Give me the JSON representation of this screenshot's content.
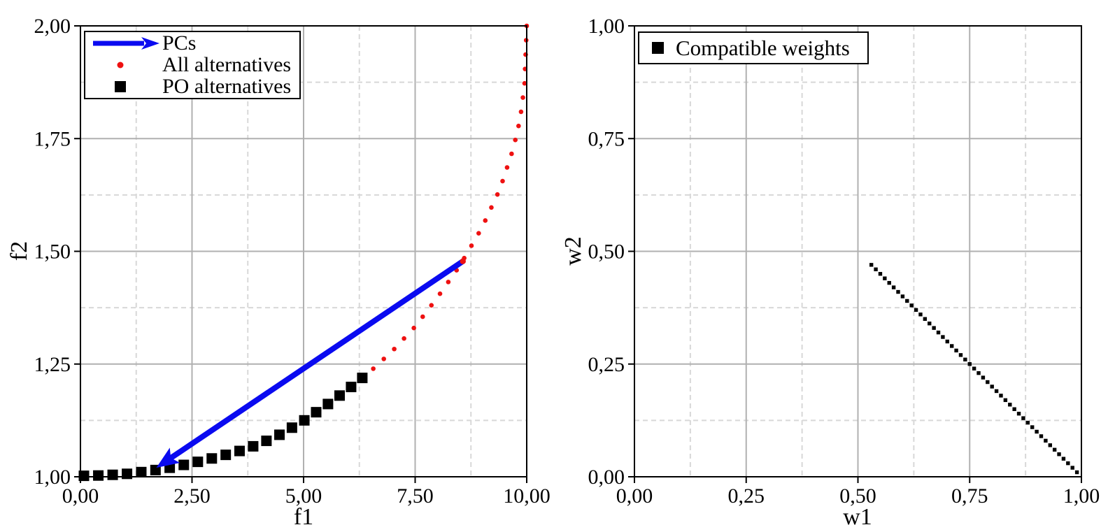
{
  "figure": {
    "background": "#ffffff",
    "axis_color": "#000000",
    "grid_major_color": "#b0b0b0",
    "grid_minor_color": "#d8d8d8",
    "pcs_arrow_color": "#0a0af0",
    "all_alternatives_color": "#ee1111",
    "po_alternatives_color": "#000000",
    "compatible_weights_color": "#000000"
  },
  "left_plot": {
    "xlabel": "f1",
    "ylabel": "f2",
    "legend": {
      "items": [
        {
          "label": "PCs",
          "marker": "arrow",
          "color": "#0a0af0"
        },
        {
          "label": "All alternatives",
          "marker": "dot",
          "color": "#ee1111"
        },
        {
          "label": "PO alternatives",
          "marker": "square",
          "color": "#000000"
        }
      ]
    }
  },
  "right_plot": {
    "xlabel": "w1",
    "ylabel": "w2",
    "legend": {
      "items": [
        {
          "label": "Compatible weights",
          "marker": "square",
          "color": "#000000"
        }
      ]
    }
  },
  "chart_data": [
    {
      "type": "scatter",
      "title": "",
      "xlabel": "f1",
      "ylabel": "f2",
      "xlim": [
        0,
        10
      ],
      "ylim": [
        1,
        2
      ],
      "x_ticks": {
        "values": [
          0,
          2.5,
          5,
          7.5,
          10
        ],
        "labels": [
          "0,00",
          "2,50",
          "5,00",
          "7,50",
          "10,00"
        ]
      },
      "y_ticks": {
        "values": [
          1,
          1.25,
          1.5,
          1.75,
          2
        ],
        "labels": [
          "1,00",
          "1,25",
          "1,50",
          "1,75",
          "2,00"
        ]
      },
      "grid": {
        "major": "solid",
        "minor": "dashed-at-midpoints"
      },
      "legend_position": "upper left",
      "series": [
        {
          "name": "All alternatives",
          "marker": "dot",
          "color": "#ee1111",
          "marker_count": 50,
          "spacing": "evenly spaced along curve",
          "curve_points_f1_f2": [
            [
              0.0,
              1.002
            ],
            [
              0.5,
              1.003
            ],
            [
              1.0,
              1.006
            ],
            [
              1.5,
              1.012
            ],
            [
              2.0,
              1.02
            ],
            [
              2.5,
              1.03
            ],
            [
              3.0,
              1.042
            ],
            [
              3.5,
              1.055
            ],
            [
              4.0,
              1.072
            ],
            [
              4.5,
              1.095
            ],
            [
              5.0,
              1.124
            ],
            [
              5.5,
              1.158
            ],
            [
              6.0,
              1.194
            ],
            [
              6.5,
              1.234
            ],
            [
              7.0,
              1.28
            ],
            [
              7.5,
              1.333
            ],
            [
              8.0,
              1.398
            ],
            [
              8.5,
              1.468
            ],
            [
              9.0,
              1.553
            ],
            [
              9.4,
              1.638
            ],
            [
              9.7,
              1.728
            ],
            [
              9.85,
              1.792
            ],
            [
              9.95,
              1.868
            ],
            [
              10.0,
              2.0
            ]
          ]
        },
        {
          "name": "PO alternatives",
          "marker": "square",
          "color": "#000000",
          "f1_min": 0.05,
          "f1_max": 6.55
        },
        {
          "name": "PCs",
          "marker": "arrow",
          "color": "#0a0af0",
          "from_f1_f2": [
            8.57,
            1.478
          ],
          "to_f1_f2": [
            1.7,
            1.02
          ]
        }
      ]
    },
    {
      "type": "scatter",
      "title": "",
      "xlabel": "w1",
      "ylabel": "w2",
      "xlim": [
        0,
        1
      ],
      "ylim": [
        0,
        1
      ],
      "x_ticks": {
        "values": [
          0,
          0.25,
          0.5,
          0.75,
          1
        ],
        "labels": [
          "0,00",
          "0,25",
          "0,50",
          "0,75",
          "1,00"
        ]
      },
      "y_ticks": {
        "values": [
          0,
          0.25,
          0.5,
          0.75,
          1
        ],
        "labels": [
          "0,00",
          "0,25",
          "0,50",
          "0,75",
          "1,00"
        ]
      },
      "grid": {
        "major": "solid",
        "minor": "dashed-at-midpoints"
      },
      "legend_position": "upper left",
      "series": [
        {
          "name": "Compatible weights",
          "marker": "square",
          "color": "#000000",
          "w1_start": 0.53,
          "w1_end": 0.99,
          "w1_step": 0.01,
          "relation": "w2 = 1 - w1"
        }
      ]
    }
  ]
}
